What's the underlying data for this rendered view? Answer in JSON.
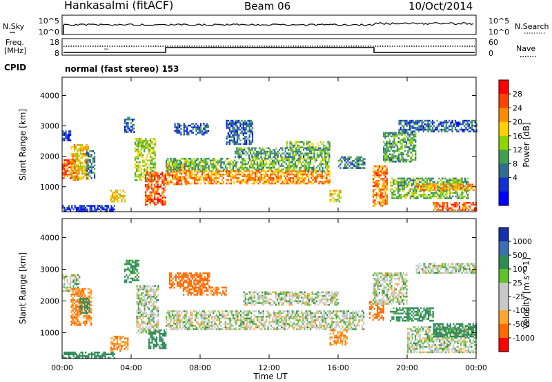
{
  "header": {
    "station": "Hankasalmi (fitACF)",
    "beam": "Beam 06",
    "date": "10/Oct/2014"
  },
  "noise_panel": {
    "left_label": "N.Sky",
    "right_label": "N.Search",
    "ticks_left": [
      "10^5",
      "10^0"
    ],
    "ticks_right": [
      "10^5",
      "10^0"
    ]
  },
  "freq_panel": {
    "left_label_1": "Freq.",
    "left_label_2": "[MHz]",
    "right_label": "Nave",
    "ticks_left": [
      "18",
      "8"
    ],
    "ticks_right": [
      "60",
      "0"
    ]
  },
  "cpid": {
    "label": "CPID",
    "value": "normal (fast stereo) 153"
  },
  "time_axis": {
    "ticks": [
      "00:00",
      "04:00",
      "08:00",
      "12:00",
      "16:00",
      "20:00",
      "00:00"
    ],
    "label": "Time UT"
  },
  "chart_data": [
    {
      "type": "heatmap",
      "name": "power",
      "ylabel": "Slant Range [km]",
      "ylim": [
        180,
        4600
      ],
      "yticks": [
        1000,
        2000,
        3000,
        4000
      ],
      "xlim_hours": [
        0,
        24
      ],
      "colorbar": {
        "label": "Power [dB]",
        "ticks": [
          "28",
          "24",
          "20",
          "16",
          "12",
          "8",
          "4"
        ],
        "colors": [
          "#ff0000",
          "#ff4400",
          "#ff8c00",
          "#ffd200",
          "#8fd400",
          "#3fa050",
          "#2f6e8e",
          "#1030d0",
          "#0000ff"
        ]
      },
      "echo_regions": [
        {
          "t0": 0.0,
          "t1": 0.5,
          "r0": 2500,
          "r1": 2850,
          "p": 6
        },
        {
          "t0": 0.0,
          "t1": 0.9,
          "r0": 1200,
          "r1": 1900,
          "p": 26
        },
        {
          "t0": 0.5,
          "t1": 1.5,
          "r0": 1250,
          "r1": 2400,
          "p": 20
        },
        {
          "t0": 1.4,
          "t1": 1.9,
          "r0": 1300,
          "r1": 2200,
          "p": 10
        },
        {
          "t0": 0.0,
          "t1": 3.0,
          "r0": 200,
          "r1": 400,
          "p": 5
        },
        {
          "t0": 2.8,
          "t1": 3.6,
          "r0": 500,
          "r1": 900,
          "p": 20
        },
        {
          "t0": 3.6,
          "t1": 4.2,
          "r0": 2800,
          "r1": 3300,
          "p": 8
        },
        {
          "t0": 4.2,
          "t1": 5.4,
          "r0": 1200,
          "r1": 2600,
          "p": 16
        },
        {
          "t0": 4.8,
          "t1": 6.0,
          "r0": 400,
          "r1": 1500,
          "p": 26
        },
        {
          "t0": 6.0,
          "t1": 7.2,
          "r0": 1100,
          "r1": 1700,
          "p": 24
        },
        {
          "t0": 6.0,
          "t1": 15.5,
          "r0": 1500,
          "r1": 1950,
          "p": 14
        },
        {
          "t0": 7.2,
          "t1": 15.5,
          "r0": 1100,
          "r1": 1550,
          "p": 23
        },
        {
          "t0": 10.0,
          "t1": 15.5,
          "r0": 1950,
          "r1": 2300,
          "p": 12
        },
        {
          "t0": 13.0,
          "t1": 15.5,
          "r0": 2300,
          "r1": 2500,
          "p": 14
        },
        {
          "t0": 9.5,
          "t1": 11.0,
          "r0": 2400,
          "r1": 3200,
          "p": 8
        },
        {
          "t0": 6.5,
          "t1": 8.5,
          "r0": 2700,
          "r1": 3100,
          "p": 8
        },
        {
          "t0": 15.5,
          "t1": 16.2,
          "r0": 500,
          "r1": 900,
          "p": 18
        },
        {
          "t0": 16.0,
          "t1": 17.5,
          "r0": 1600,
          "r1": 2000,
          "p": 10
        },
        {
          "t0": 18.0,
          "t1": 18.8,
          "r0": 400,
          "r1": 1700,
          "p": 24
        },
        {
          "t0": 18.6,
          "t1": 20.5,
          "r0": 1800,
          "r1": 2800,
          "p": 12
        },
        {
          "t0": 19.5,
          "t1": 24.0,
          "r0": 2800,
          "r1": 3200,
          "p": 8
        },
        {
          "t0": 19.0,
          "t1": 23.5,
          "r0": 600,
          "r1": 1300,
          "p": 14
        },
        {
          "t0": 20.5,
          "t1": 24.0,
          "r0": 900,
          "r1": 1100,
          "p": 22
        },
        {
          "t0": 21.5,
          "t1": 24.0,
          "r0": 250,
          "r1": 500,
          "p": 26
        }
      ]
    },
    {
      "type": "heatmap",
      "name": "velocity",
      "ylabel": "Slant Range [km]",
      "ylim": [
        180,
        4600
      ],
      "yticks": [
        1000,
        2000,
        3000,
        4000
      ],
      "xlim_hours": [
        0,
        24
      ],
      "colorbar": {
        "label": "Velocity [m s^-1]",
        "ticks": [
          "1000",
          "500",
          "100",
          "25",
          "-25",
          "-100",
          "-500",
          "-1000"
        ],
        "colors": [
          "#1530a8",
          "#3a6eb5",
          "#2e8b57",
          "#5ec22d",
          "#c8c8c8",
          "#c8c8c8",
          "#ffa530",
          "#ff6a00",
          "#ff0000"
        ]
      },
      "echo_regions": [
        {
          "t0": 0.0,
          "t1": 1.0,
          "r0": 2300,
          "r1": 2850,
          "v": 0
        },
        {
          "t0": 0.5,
          "t1": 1.7,
          "r0": 1250,
          "r1": 2400,
          "v": -300
        },
        {
          "t0": 1.0,
          "t1": 1.6,
          "r0": 1600,
          "r1": 2100,
          "v": 200
        },
        {
          "t0": 0.0,
          "t1": 3.0,
          "r0": 200,
          "r1": 400,
          "v": 150
        },
        {
          "t0": 2.8,
          "t1": 3.8,
          "r0": 400,
          "r1": 900,
          "v": -300
        },
        {
          "t0": 3.6,
          "t1": 4.4,
          "r0": 2600,
          "r1": 3300,
          "v": 120
        },
        {
          "t0": 4.3,
          "t1": 5.6,
          "r0": 1000,
          "r1": 2500,
          "v": 0
        },
        {
          "t0": 5.0,
          "t1": 6.0,
          "r0": 500,
          "r1": 1100,
          "v": 150
        },
        {
          "t0": 6.2,
          "t1": 8.5,
          "r0": 2400,
          "r1": 2900,
          "v": -500
        },
        {
          "t0": 7.0,
          "t1": 9.5,
          "r0": 2200,
          "r1": 2450,
          "v": -350
        },
        {
          "t0": 6.0,
          "t1": 17.5,
          "r0": 1100,
          "r1": 1700,
          "v": 0
        },
        {
          "t0": 10.5,
          "t1": 16.0,
          "r0": 1900,
          "r1": 2300,
          "v": 0
        },
        {
          "t0": 15.5,
          "t1": 16.5,
          "r0": 600,
          "r1": 1100,
          "v": -300
        },
        {
          "t0": 17.8,
          "t1": 18.6,
          "r0": 1400,
          "r1": 2000,
          "v": -400
        },
        {
          "t0": 18.0,
          "t1": 20.0,
          "r0": 1900,
          "r1": 2900,
          "v": 0
        },
        {
          "t0": 19.0,
          "t1": 21.5,
          "r0": 1400,
          "r1": 1800,
          "v": 120
        },
        {
          "t0": 20.5,
          "t1": 24.0,
          "r0": 2900,
          "r1": 3200,
          "v": 0
        },
        {
          "t0": 20.0,
          "t1": 24.0,
          "r0": 400,
          "r1": 1200,
          "v": 0
        },
        {
          "t0": 21.5,
          "t1": 24.0,
          "r0": 900,
          "r1": 1300,
          "v": 150
        }
      ]
    }
  ]
}
